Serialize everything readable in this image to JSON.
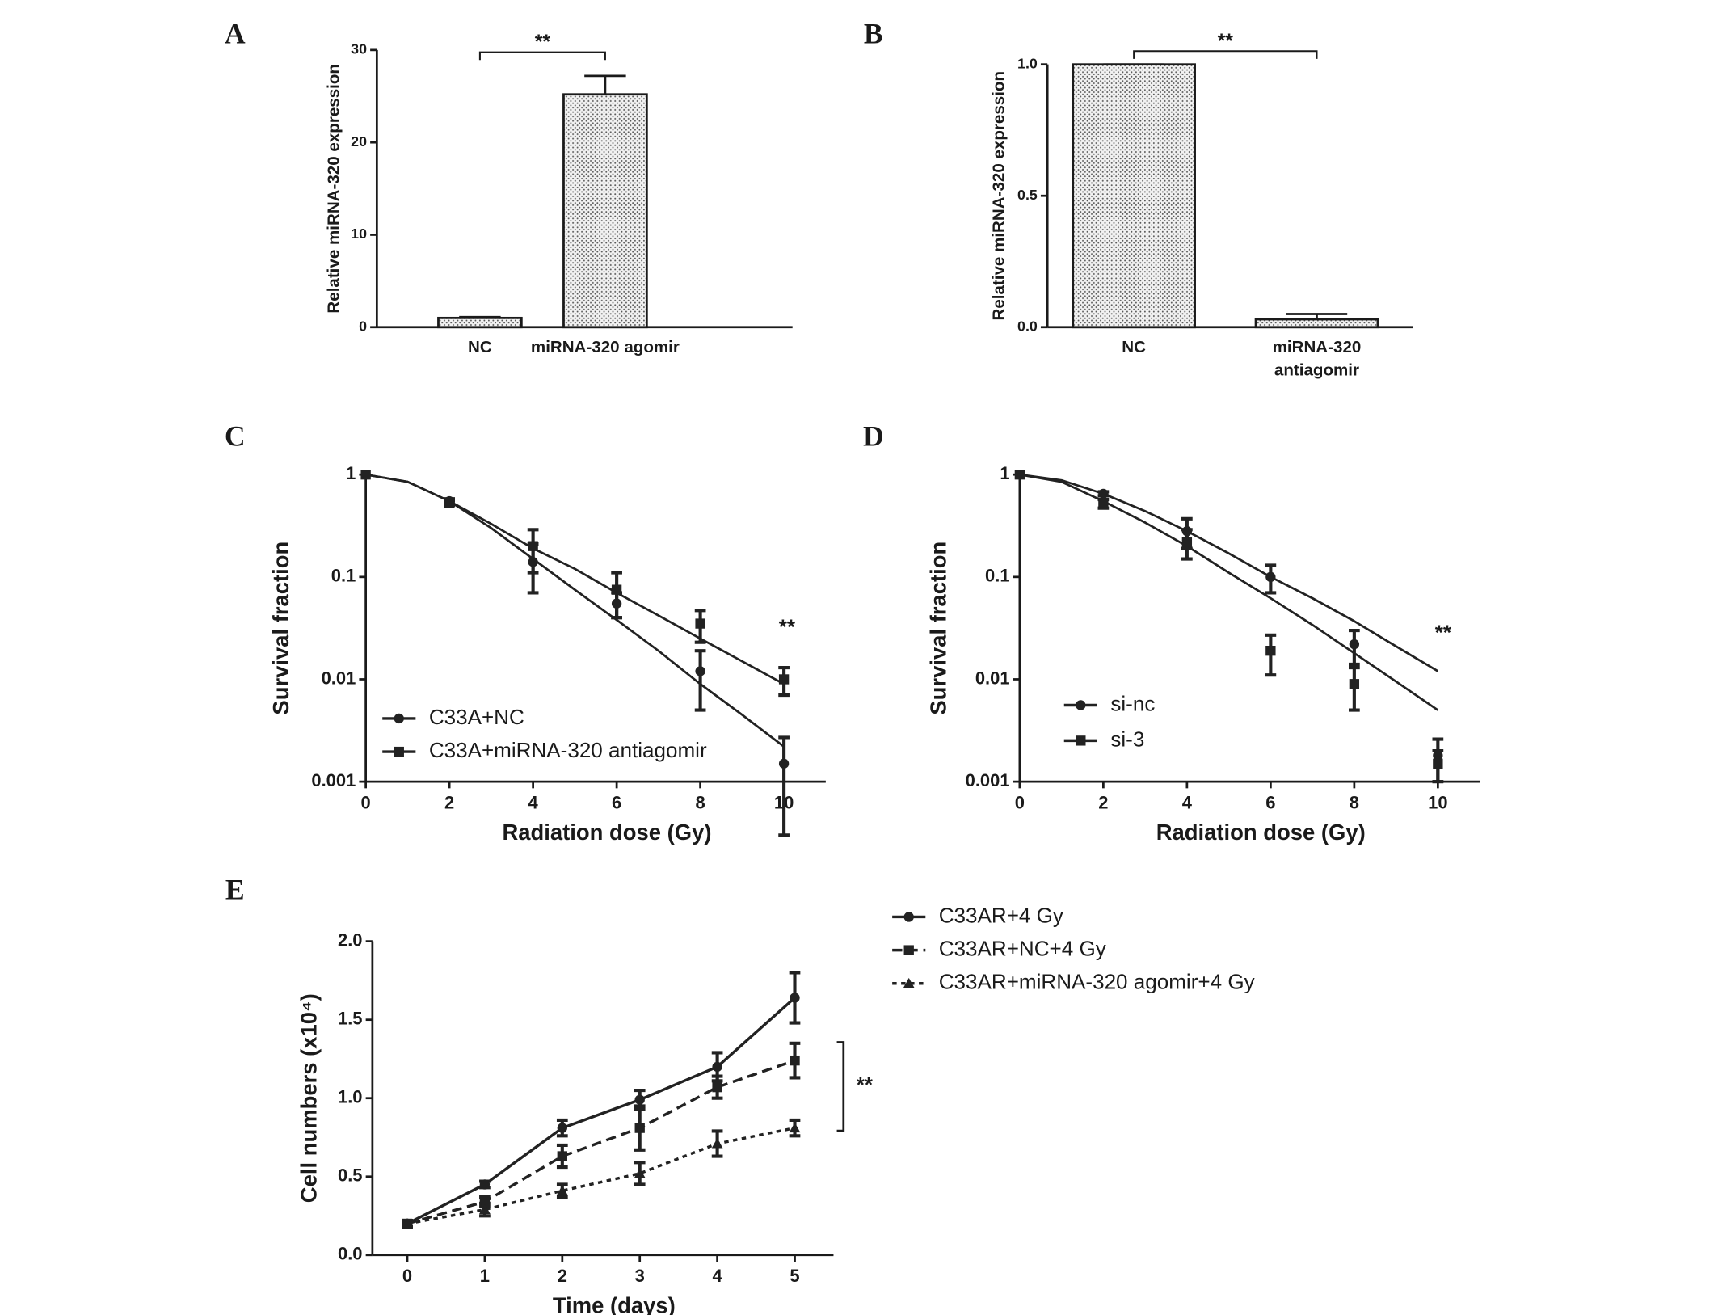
{
  "chart_data": [
    {
      "type": "bar",
      "label": "A",
      "ylabel": "Relative miRNA-320 expression",
      "categories": [
        "NC",
        "miRNA-320 agomir"
      ],
      "values": [
        1,
        25.2
      ],
      "errors": [
        0.1,
        2.0
      ],
      "color": "#d9d9d9",
      "ylim": [
        0,
        30
      ],
      "yticks": [
        0,
        10,
        20,
        30
      ],
      "annotation": "**"
    },
    {
      "type": "bar",
      "label": "B",
      "ylabel": "Relative miRNA-320 expression",
      "categories": [
        "NC",
        "miRNA-320 antiagomir"
      ],
      "values": [
        1.0,
        0.03
      ],
      "errors": [
        0,
        0.02
      ],
      "color": "#d9d9d9",
      "ylim": [
        0,
        1.0
      ],
      "yticks": [
        {
          "value": 0,
          "label": "0.0"
        },
        {
          "value": 0.5,
          "label": "0.5"
        },
        {
          "value": 1,
          "label": "1.0"
        }
      ],
      "annotation": "**"
    },
    {
      "type": "line",
      "label": "C",
      "xlabel": "Radiation dose (Gy)",
      "ylabel": "Survival fraction",
      "ylog": true,
      "x": [
        0,
        2,
        4,
        6,
        8,
        10
      ],
      "xlim": [
        0,
        11
      ],
      "xticks": [
        0,
        2,
        4,
        6,
        8,
        10
      ],
      "ylim": [
        0.001,
        1
      ],
      "yticks": [
        0.001,
        0.01,
        0.1,
        1
      ],
      "legend": "lower left",
      "annotation": "**",
      "fit_x": [
        0,
        1,
        2,
        3,
        4,
        5,
        6,
        7,
        8,
        9,
        10
      ],
      "series": [
        {
          "name": "C33A+NC",
          "color": "#222222",
          "marker": "circle",
          "dash": "solid",
          "values": [
            1,
            0.55,
            0.14,
            0.055,
            0.012,
            0.0015
          ],
          "errors": [
            0,
            0.03,
            0.07,
            0.015,
            0.007,
            0.0012
          ],
          "fit": [
            1,
            0.85,
            0.55,
            0.3,
            0.15,
            0.075,
            0.038,
            0.019,
            0.009,
            0.0045,
            0.0022
          ]
        },
        {
          "name": "C33A+miRNA-320 antiagomir",
          "color": "#222222",
          "marker": "square",
          "dash": "solid",
          "values": [
            1,
            0.53,
            0.2,
            0.075,
            0.035,
            0.01
          ],
          "errors": [
            0,
            0.03,
            0.09,
            0.035,
            0.012,
            0.003
          ],
          "fit": [
            1,
            0.85,
            0.55,
            0.33,
            0.19,
            0.12,
            0.07,
            0.042,
            0.025,
            0.015,
            0.009
          ]
        }
      ]
    },
    {
      "type": "line",
      "label": "D",
      "xlabel": "Radiation dose (Gy)",
      "ylabel": "Survival fraction",
      "ylog": true,
      "x": [
        0,
        2,
        4,
        6,
        8,
        10
      ],
      "xlim": [
        0,
        11
      ],
      "xticks": [
        0,
        2,
        4,
        6,
        8,
        10
      ],
      "ylim": [
        0.001,
        1
      ],
      "yticks": [
        0.001,
        0.01,
        0.1,
        1
      ],
      "legend": "lower left",
      "annotation": "**",
      "fit_x": [
        0,
        1,
        2,
        3,
        4,
        5,
        6,
        7,
        8,
        9,
        10
      ],
      "series": [
        {
          "name": "si-nc",
          "color": "#222222",
          "marker": "circle",
          "dash": "solid",
          "values": [
            1,
            0.65,
            0.28,
            0.1,
            0.022,
            0.0018
          ],
          "errors": [
            0,
            0.03,
            0.09,
            0.03,
            0.008,
            0.0008
          ],
          "fit": [
            1,
            0.88,
            0.65,
            0.44,
            0.28,
            0.17,
            0.1,
            0.062,
            0.037,
            0.021,
            0.012
          ]
        },
        {
          "name": "si-3",
          "color": "#222222",
          "marker": "square",
          "dash": "solid",
          "values": [
            1,
            0.52,
            0.22,
            0.019,
            0.009,
            0.0015
          ],
          "errors": [
            0,
            0.05,
            0.07,
            0.008,
            0.004,
            0.0005
          ],
          "fit": [
            1,
            0.85,
            0.55,
            0.34,
            0.2,
            0.11,
            0.062,
            0.034,
            0.018,
            0.0095,
            0.005
          ]
        }
      ]
    },
    {
      "type": "line",
      "label": "E",
      "xlabel": "Time (days)",
      "ylabel": "Cell numbers (x10⁴)",
      "ylog": false,
      "x": [
        0,
        1,
        2,
        3,
        4,
        5
      ],
      "xlim": [
        -0.45,
        5.5
      ],
      "xticks": [
        0,
        1,
        2,
        3,
        4,
        5
      ],
      "ylim": [
        0,
        2
      ],
      "yticks": [
        {
          "value": 0,
          "label": "0.0"
        },
        {
          "value": 0.5,
          "label": "0.5"
        },
        {
          "value": 1,
          "label": "1.0"
        },
        {
          "value": 1.5,
          "label": "1.5"
        },
        {
          "value": 2,
          "label": "2.0"
        }
      ],
      "legend": "outside right",
      "annotation": "**",
      "series": [
        {
          "name": "C33AR+4 Gy",
          "color": "#222222",
          "marker": "circle",
          "dash": "solid",
          "values": [
            0.2,
            0.45,
            0.81,
            0.99,
            1.2,
            1.64
          ],
          "errors": [
            0.02,
            0.02,
            0.05,
            0.06,
            0.09,
            0.16
          ]
        },
        {
          "name": "C33AR+NC+4 Gy",
          "color": "#222222",
          "marker": "square",
          "dash": "dashed",
          "values": [
            0.2,
            0.34,
            0.63,
            0.81,
            1.07,
            1.24
          ],
          "errors": [
            0.02,
            0.03,
            0.07,
            0.14,
            0.07,
            0.11
          ]
        },
        {
          "name": "C33AR+miRNA-320 agomir+4 Gy",
          "color": "#222222",
          "marker": "triangle",
          "dash": "dotted",
          "values": [
            0.2,
            0.29,
            0.41,
            0.52,
            0.71,
            0.81
          ],
          "errors": [
            0.02,
            0.04,
            0.04,
            0.07,
            0.08,
            0.05
          ]
        }
      ]
    }
  ]
}
